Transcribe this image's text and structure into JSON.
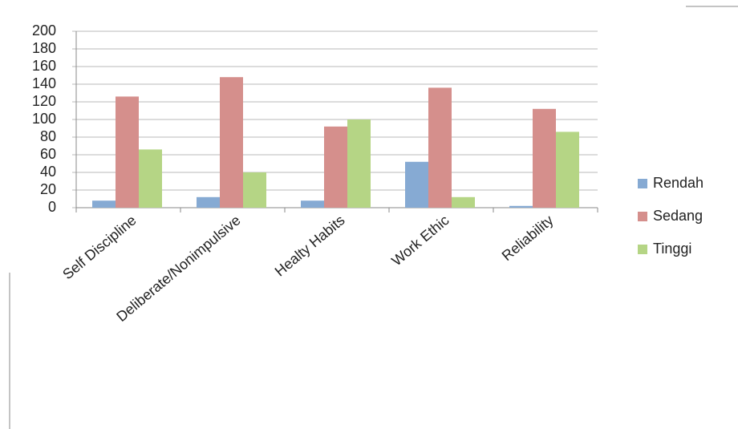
{
  "chart_data": {
    "type": "bar",
    "categories": [
      "Self Discipline",
      "Deliberate/Nonimpulsive",
      "Healty Habits",
      "Work Ethic",
      "Reliability"
    ],
    "series": [
      {
        "name": "Rendah",
        "color": "#86aad3",
        "values": [
          8,
          12,
          8,
          52,
          2
        ]
      },
      {
        "name": "Sedang",
        "color": "#d58f8c",
        "values": [
          126,
          148,
          92,
          136,
          112
        ]
      },
      {
        "name": "Tinggi",
        "color": "#b5d585",
        "values": [
          66,
          40,
          100,
          12,
          86
        ]
      }
    ],
    "ylim": [
      0,
      200
    ],
    "yticks": [
      0,
      20,
      40,
      60,
      80,
      100,
      120,
      140,
      160,
      180,
      200
    ],
    "grid": true,
    "legend": "right"
  }
}
